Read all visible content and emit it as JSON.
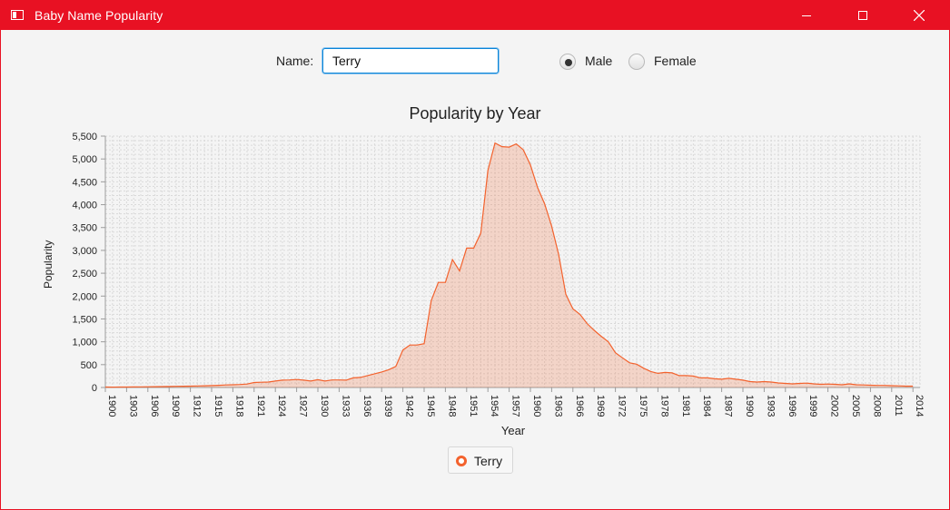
{
  "window": {
    "title": "Baby Name Popularity",
    "accent": "#e81123"
  },
  "form": {
    "name_label": "Name:",
    "name_value": "Terry",
    "gender_options": [
      {
        "label": "Male",
        "selected": true
      },
      {
        "label": "Female",
        "selected": false
      }
    ]
  },
  "chart_data": {
    "type": "area",
    "title": "Popularity by Year",
    "xlabel": "Year",
    "ylabel": "Popularity",
    "xlim": [
      1900,
      2015
    ],
    "ylim": [
      0,
      5500
    ],
    "y_ticks": [
      0,
      500,
      1000,
      1500,
      2000,
      2500,
      3000,
      3500,
      4000,
      4500,
      5000,
      5500
    ],
    "x_ticks": [
      1900,
      1903,
      1906,
      1909,
      1912,
      1915,
      1918,
      1921,
      1924,
      1927,
      1930,
      1933,
      1936,
      1939,
      1942,
      1945,
      1948,
      1951,
      1954,
      1957,
      1960,
      1963,
      1966,
      1969,
      1972,
      1975,
      1978,
      1981,
      1984,
      1987,
      1990,
      1993,
      1996,
      1999,
      2002,
      2005,
      2008,
      2011,
      2014
    ],
    "grid": true,
    "legend_position": "bottom",
    "color": "#f3622d",
    "series": [
      {
        "name": "Terry",
        "x": [
          1900,
          1901,
          1902,
          1903,
          1904,
          1905,
          1906,
          1907,
          1908,
          1909,
          1910,
          1911,
          1912,
          1913,
          1914,
          1915,
          1916,
          1917,
          1918,
          1919,
          1920,
          1921,
          1922,
          1923,
          1924,
          1925,
          1926,
          1927,
          1928,
          1929,
          1930,
          1931,
          1932,
          1933,
          1934,
          1935,
          1936,
          1937,
          1938,
          1939,
          1940,
          1941,
          1942,
          1943,
          1944,
          1945,
          1946,
          1947,
          1948,
          1949,
          1950,
          1951,
          1952,
          1953,
          1954,
          1955,
          1956,
          1957,
          1958,
          1959,
          1960,
          1961,
          1962,
          1963,
          1964,
          1965,
          1966,
          1967,
          1968,
          1969,
          1970,
          1971,
          1972,
          1973,
          1974,
          1975,
          1976,
          1977,
          1978,
          1979,
          1980,
          1981,
          1982,
          1983,
          1984,
          1985,
          1986,
          1987,
          1988,
          1989,
          1990,
          1991,
          1992,
          1993,
          1994,
          1995,
          1996,
          1997,
          1998,
          1999,
          2000,
          2001,
          2002,
          2003,
          2004,
          2005,
          2006,
          2007,
          2008,
          2009,
          2010,
          2011,
          2012,
          2013,
          2014
        ],
        "values": [
          10,
          8,
          9,
          10,
          12,
          14,
          15,
          18,
          20,
          22,
          25,
          28,
          30,
          33,
          38,
          42,
          48,
          55,
          60,
          65,
          75,
          110,
          115,
          120,
          140,
          160,
          165,
          175,
          160,
          140,
          170,
          140,
          165,
          165,
          160,
          210,
          220,
          260,
          300,
          340,
          390,
          460,
          820,
          930,
          930,
          960,
          1900,
          2300,
          2300,
          2800,
          2550,
          3050,
          3050,
          3380,
          4750,
          5350,
          5270,
          5260,
          5330,
          5200,
          4870,
          4380,
          4020,
          3530,
          2900,
          2040,
          1720,
          1600,
          1400,
          1250,
          1120,
          1000,
          760,
          650,
          540,
          510,
          420,
          350,
          310,
          330,
          320,
          260,
          260,
          250,
          210,
          210,
          190,
          180,
          200,
          180,
          160,
          130,
          120,
          130,
          120,
          100,
          90,
          80,
          90,
          95,
          80,
          70,
          75,
          70,
          60,
          80,
          60,
          55,
          50,
          45,
          45,
          40,
          35,
          30,
          30
        ]
      }
    ]
  }
}
